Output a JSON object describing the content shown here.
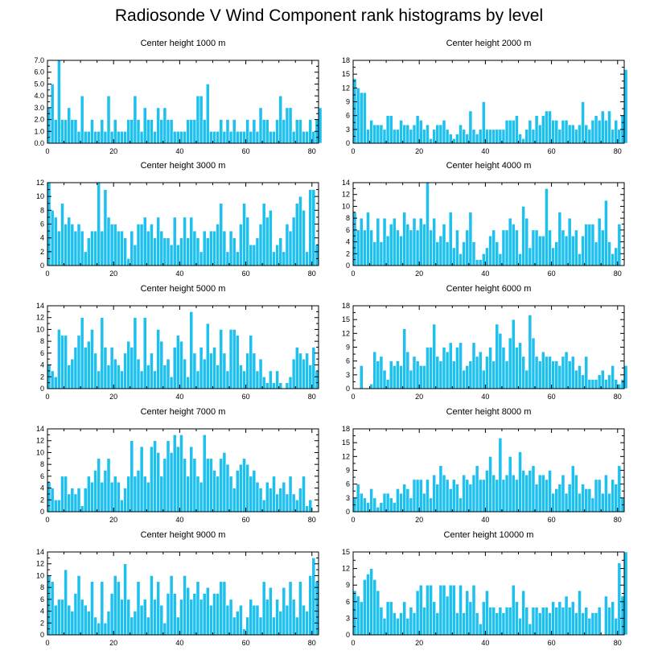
{
  "figure": {
    "title": "Radiosonde V Wind Component rank histograms by level",
    "bar_color": "#1ec0ee",
    "bar_edge_color": "#ffffff"
  },
  "chart_data": [
    {
      "type": "bar",
      "title": "Center height 1000 m",
      "xlim": [
        0,
        82
      ],
      "ylim": [
        0,
        7
      ],
      "xticks": [
        0,
        20,
        40,
        60,
        80
      ],
      "yticks": [
        0.0,
        1.0,
        2.0,
        3.0,
        4.0,
        5.0,
        6.0,
        7.0
      ],
      "ytick_labels": [
        "0.0",
        "1.0",
        "2.0",
        "3.0",
        "4.0",
        "5.0",
        "6.0",
        "7.0"
      ],
      "values": [
        3,
        5,
        2,
        7,
        2,
        2,
        3,
        2,
        2,
        1,
        4,
        1,
        1,
        2,
        1,
        1,
        2,
        1,
        4,
        1,
        2,
        1,
        1,
        1,
        2,
        2,
        4,
        2,
        1,
        3,
        2,
        2,
        1,
        3,
        2,
        3,
        2,
        2,
        1,
        1,
        1,
        1,
        2,
        2,
        2,
        4,
        4,
        2,
        5,
        1,
        1,
        1,
        2,
        1,
        2,
        1,
        2,
        1,
        1,
        1,
        2,
        1,
        2,
        1,
        3,
        2,
        2,
        1,
        1,
        2,
        4,
        2,
        3,
        3,
        1,
        2,
        2,
        1,
        1,
        2,
        1,
        2,
        3
      ]
    },
    {
      "type": "bar",
      "title": "Center height 2000 m",
      "xlim": [
        0,
        82
      ],
      "ylim": [
        0,
        18
      ],
      "xticks": [
        0,
        20,
        40,
        60,
        80
      ],
      "yticks": [
        0,
        3,
        6,
        9,
        12,
        15,
        18
      ],
      "ytick_labels": [
        "0",
        "3",
        "6",
        "9",
        "12",
        "15",
        "18"
      ],
      "values": [
        14,
        12,
        11,
        11,
        3,
        5,
        4,
        4,
        4,
        3,
        6,
        6,
        3,
        3,
        5,
        4,
        4,
        3,
        4,
        6,
        5,
        3,
        4,
        1,
        3,
        4,
        4,
        5,
        3,
        2,
        1,
        2,
        4,
        3,
        2,
        7,
        3,
        2,
        3,
        9,
        3,
        3,
        3,
        3,
        3,
        3,
        5,
        5,
        5,
        6,
        2,
        1,
        3,
        5,
        3,
        6,
        4,
        6,
        7,
        7,
        5,
        5,
        3,
        5,
        5,
        4,
        4,
        3,
        4,
        9,
        4,
        3,
        5,
        6,
        5,
        7,
        5,
        7,
        3,
        5,
        3,
        6,
        16
      ]
    },
    {
      "type": "bar",
      "title": "Center height 3000 m",
      "xlim": [
        0,
        82
      ],
      "ylim": [
        0,
        12
      ],
      "xticks": [
        0,
        20,
        40,
        60,
        80
      ],
      "yticks": [
        0,
        2,
        4,
        6,
        8,
        10,
        12
      ],
      "ytick_labels": [
        "0",
        "2",
        "4",
        "6",
        "8",
        "10",
        "12"
      ],
      "values": [
        12,
        8,
        7,
        5,
        9,
        6,
        7,
        6,
        5,
        6,
        5,
        2,
        4,
        5,
        5,
        12,
        5,
        11,
        7,
        6,
        6,
        5,
        5,
        4,
        1,
        5,
        3,
        6,
        6,
        7,
        5,
        6,
        4,
        7,
        5,
        4,
        4,
        3,
        7,
        3,
        4,
        7,
        4,
        7,
        5,
        4,
        2,
        5,
        4,
        5,
        5,
        6,
        9,
        5,
        2,
        5,
        4,
        2,
        6,
        9,
        7,
        3,
        3,
        4,
        6,
        9,
        7,
        8,
        2,
        3,
        4,
        2,
        6,
        5,
        7,
        9,
        10,
        8,
        2,
        11,
        11,
        3
      ]
    },
    {
      "type": "bar",
      "title": "Center height 4000 m",
      "xlim": [
        0,
        82
      ],
      "ylim": [
        0,
        14
      ],
      "xticks": [
        0,
        20,
        40,
        60,
        80
      ],
      "yticks": [
        0,
        2,
        4,
        6,
        8,
        10,
        12,
        14
      ],
      "ytick_labels": [
        "0",
        "2",
        "4",
        "6",
        "8",
        "10",
        "12",
        "14"
      ],
      "values": [
        9,
        6,
        8,
        6,
        9,
        6,
        4,
        8,
        4,
        8,
        5,
        7,
        8,
        6,
        5,
        9,
        7,
        6,
        8,
        6,
        8,
        7,
        14,
        6,
        8,
        4,
        5,
        7,
        4,
        9,
        3,
        6,
        2,
        4,
        6,
        9,
        4,
        1,
        1,
        2,
        3,
        5,
        6,
        4,
        2,
        6,
        6,
        8,
        7,
        6,
        2,
        10,
        8,
        3,
        6,
        6,
        5,
        5,
        13,
        6,
        3,
        4,
        9,
        6,
        5,
        8,
        5,
        6,
        2,
        5,
        7,
        7,
        7,
        4,
        8,
        6,
        11,
        4,
        2,
        3,
        7
      ]
    },
    {
      "type": "bar",
      "title": "Center height 5000 m",
      "xlim": [
        0,
        82
      ],
      "ylim": [
        0,
        14
      ],
      "xticks": [
        0,
        20,
        40,
        60,
        80
      ],
      "yticks": [
        0,
        2,
        4,
        6,
        8,
        10,
        12,
        14
      ],
      "ytick_labels": [
        "0",
        "2",
        "4",
        "6",
        "8",
        "10",
        "12",
        "14"
      ],
      "values": [
        4,
        3,
        2,
        10,
        9,
        9,
        4,
        5,
        7,
        9,
        12,
        7,
        8,
        10,
        6,
        3,
        12,
        7,
        4,
        7,
        5,
        4,
        3,
        6,
        8,
        7,
        12,
        5,
        3,
        12,
        4,
        6,
        3,
        10,
        8,
        4,
        5,
        2,
        7,
        9,
        8,
        5,
        2,
        13,
        6,
        3,
        7,
        5,
        11,
        6,
        7,
        4,
        10,
        6,
        3,
        10,
        10,
        9,
        4,
        3,
        6,
        9,
        6,
        3,
        5,
        2,
        1,
        3,
        1,
        3,
        1,
        0,
        1,
        2,
        5,
        7,
        6,
        5,
        6,
        4,
        7,
        3
      ]
    },
    {
      "type": "bar",
      "title": "Center height 6000 m",
      "xlim": [
        0,
        82
      ],
      "ylim": [
        0,
        18
      ],
      "xticks": [
        0,
        20,
        40,
        60,
        80
      ],
      "yticks": [
        0,
        3,
        6,
        9,
        12,
        15,
        18
      ],
      "ytick_labels": [
        "0",
        "3",
        "6",
        "9",
        "12",
        "15",
        "18"
      ],
      "values": [
        0,
        0,
        5,
        0,
        0,
        1,
        8,
        6,
        7,
        4,
        2,
        6,
        5,
        6,
        5,
        13,
        8,
        4,
        7,
        6,
        5,
        5,
        9,
        9,
        14,
        7,
        6,
        9,
        8,
        10,
        6,
        9,
        10,
        4,
        5,
        6,
        10,
        7,
        8,
        4,
        7,
        9,
        6,
        14,
        12,
        9,
        6,
        11,
        15,
        9,
        10,
        7,
        4,
        16,
        11,
        7,
        6,
        8,
        7,
        7,
        6,
        6,
        5,
        7,
        8,
        6,
        7,
        4,
        5,
        3,
        7,
        2,
        2,
        2,
        3,
        4,
        2,
        3,
        5,
        2,
        1,
        2,
        5
      ]
    },
    {
      "type": "bar",
      "title": "Center height 7000 m",
      "xlim": [
        0,
        82
      ],
      "ylim": [
        0,
        14
      ],
      "xticks": [
        0,
        20,
        40,
        60,
        80
      ],
      "yticks": [
        0,
        2,
        4,
        6,
        8,
        10,
        12,
        14
      ],
      "ytick_labels": [
        "0",
        "2",
        "4",
        "6",
        "8",
        "10",
        "12",
        "14"
      ],
      "values": [
        5,
        4,
        2,
        2,
        6,
        6,
        3,
        4,
        3,
        4,
        1,
        4,
        6,
        5,
        7,
        9,
        5,
        7,
        9,
        5,
        6,
        5,
        2,
        4,
        6,
        12,
        6,
        7,
        11,
        6,
        5,
        11,
        12,
        10,
        6,
        9,
        12,
        10,
        13,
        11,
        13,
        9,
        6,
        11,
        9,
        6,
        5,
        13,
        9,
        9,
        7,
        6,
        9,
        10,
        8,
        6,
        4,
        7,
        8,
        9,
        8,
        6,
        7,
        5,
        4,
        2,
        5,
        4,
        6,
        3,
        4,
        5,
        3,
        6,
        3,
        2,
        4,
        6,
        1,
        2
      ]
    },
    {
      "type": "bar",
      "title": "Center height 8000 m",
      "xlim": [
        0,
        82
      ],
      "ylim": [
        0,
        18
      ],
      "xticks": [
        0,
        20,
        40,
        60,
        80
      ],
      "yticks": [
        0,
        3,
        6,
        9,
        12,
        15,
        18
      ],
      "ytick_labels": [
        "0",
        "3",
        "6",
        "9",
        "12",
        "15",
        "18"
      ],
      "values": [
        3,
        6,
        4,
        3,
        2,
        5,
        3,
        1,
        2,
        4,
        4,
        3,
        2,
        5,
        4,
        6,
        5,
        3,
        7,
        7,
        7,
        4,
        7,
        3,
        8,
        6,
        10,
        8,
        7,
        5,
        7,
        6,
        3,
        8,
        7,
        6,
        8,
        10,
        7,
        7,
        9,
        12,
        8,
        7,
        16,
        7,
        8,
        12,
        8,
        7,
        13,
        9,
        8,
        9,
        10,
        6,
        8,
        8,
        7,
        9,
        4,
        5,
        6,
        8,
        4,
        6,
        10,
        8,
        4,
        6,
        5,
        5,
        3,
        7,
        7,
        4,
        8,
        4,
        7,
        6,
        10,
        3
      ]
    },
    {
      "type": "bar",
      "title": "Center height 9000 m",
      "xlim": [
        0,
        82
      ],
      "ylim": [
        0,
        14
      ],
      "xticks": [
        0,
        20,
        40,
        60,
        80
      ],
      "yticks": [
        0,
        2,
        4,
        6,
        8,
        10,
        12,
        14
      ],
      "ytick_labels": [
        "0",
        "2",
        "4",
        "6",
        "8",
        "10",
        "12",
        "14"
      ],
      "values": [
        10,
        9,
        5,
        6,
        6,
        11,
        5,
        4,
        7,
        10,
        6,
        5,
        4,
        9,
        3,
        2,
        9,
        2,
        4,
        7,
        10,
        9,
        6,
        12,
        6,
        3,
        4,
        9,
        5,
        6,
        3,
        10,
        6,
        9,
        5,
        2,
        7,
        10,
        7,
        3,
        6,
        10,
        8,
        6,
        7,
        9,
        6,
        7,
        8,
        5,
        7,
        7,
        9,
        9,
        5,
        6,
        3,
        4,
        5,
        1,
        3,
        6,
        5,
        5,
        3,
        9,
        6,
        8,
        3,
        6,
        4,
        8,
        5,
        9,
        6,
        3,
        9,
        5,
        4,
        10,
        13,
        9
      ]
    },
    {
      "type": "bar",
      "title": "Center height 10000 m",
      "xlim": [
        0,
        82
      ],
      "ylim": [
        0,
        15
      ],
      "xticks": [
        0,
        20,
        40,
        60,
        80
      ],
      "yticks": [
        0,
        3,
        6,
        9,
        12,
        15
      ],
      "ytick_labels": [
        "0",
        "3",
        "6",
        "9",
        "12",
        "15"
      ],
      "values": [
        8,
        7,
        6,
        10,
        11,
        12,
        10,
        8,
        5,
        3,
        6,
        6,
        4,
        3,
        4,
        6,
        3,
        5,
        4,
        8,
        9,
        5,
        9,
        9,
        6,
        4,
        9,
        9,
        7,
        9,
        9,
        4,
        9,
        4,
        8,
        6,
        9,
        4,
        2,
        6,
        8,
        5,
        5,
        4,
        5,
        4,
        5,
        5,
        9,
        6,
        3,
        8,
        5,
        2,
        5,
        5,
        4,
        5,
        5,
        4,
        6,
        5,
        6,
        5,
        7,
        5,
        6,
        4,
        8,
        4,
        5,
        3,
        4,
        4,
        5,
        0,
        7,
        5,
        6,
        3,
        13,
        7,
        15
      ]
    }
  ]
}
